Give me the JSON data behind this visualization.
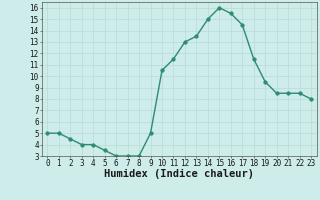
{
  "xlabel": "Humidex (Indice chaleur)",
  "x": [
    0,
    1,
    2,
    3,
    4,
    5,
    6,
    7,
    8,
    9,
    10,
    11,
    12,
    13,
    14,
    15,
    16,
    17,
    18,
    19,
    20,
    21,
    22,
    23
  ],
  "y": [
    5,
    5,
    4.5,
    4,
    4,
    3.5,
    3,
    3,
    3,
    5,
    10.5,
    11.5,
    13,
    13.5,
    15,
    16,
    15.5,
    14.5,
    11.5,
    9.5,
    8.5,
    8.5,
    8.5,
    8
  ],
  "line_color": "#2e8b74",
  "marker_size": 2.5,
  "linewidth": 1.0,
  "background_color": "#cdecea",
  "grid_color": "#b8dbd8",
  "ylim": [
    3,
    16.5
  ],
  "xlim": [
    -0.5,
    23.5
  ],
  "yticks": [
    3,
    4,
    5,
    6,
    7,
    8,
    9,
    10,
    11,
    12,
    13,
    14,
    15,
    16
  ],
  "xticks": [
    0,
    1,
    2,
    3,
    4,
    5,
    6,
    7,
    8,
    9,
    10,
    11,
    12,
    13,
    14,
    15,
    16,
    17,
    18,
    19,
    20,
    21,
    22,
    23
  ],
  "tick_fontsize": 5.5,
  "label_fontsize": 7.5,
  "spine_color": "#555555"
}
